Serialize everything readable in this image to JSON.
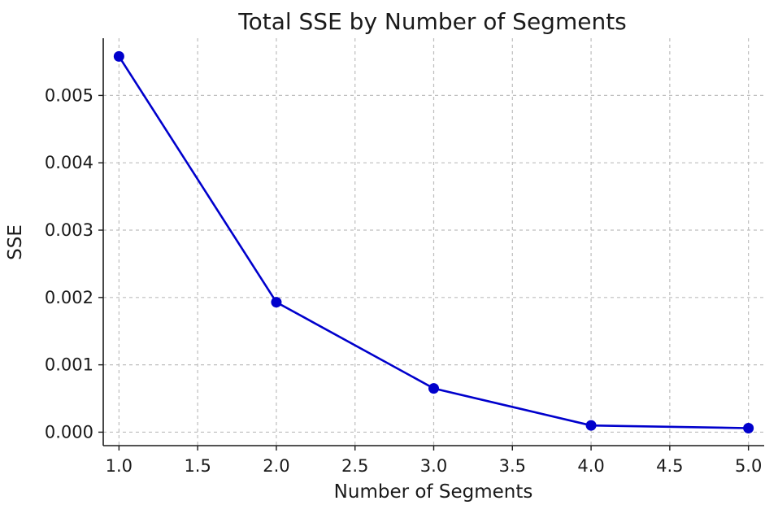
{
  "chart_data": {
    "type": "line",
    "title": "Total SSE by Number of Segments",
    "xlabel": "Number of Segments",
    "ylabel": "SSE",
    "x": [
      1,
      2,
      3,
      4,
      5
    ],
    "series": [
      {
        "values": [
          0.00558,
          0.00193,
          0.00065,
          0.0001,
          6e-05
        ],
        "color": "#0000cc",
        "marker": "circle"
      }
    ],
    "xlim": [
      0.9,
      5.1
    ],
    "ylim": [
      -0.0002,
      0.00585
    ],
    "xticks": [
      1.0,
      1.5,
      2.0,
      2.5,
      3.0,
      3.5,
      4.0,
      4.5,
      5.0
    ],
    "xtick_labels": [
      "1.0",
      "1.5",
      "2.0",
      "2.5",
      "3.0",
      "3.5",
      "4.0",
      "4.5",
      "5.0"
    ],
    "yticks": [
      0.0,
      0.001,
      0.002,
      0.003,
      0.004,
      0.005
    ],
    "ytick_labels": [
      "0.000",
      "0.001",
      "0.002",
      "0.003",
      "0.004",
      "0.005"
    ],
    "grid": true,
    "grid_style": "dashed"
  }
}
